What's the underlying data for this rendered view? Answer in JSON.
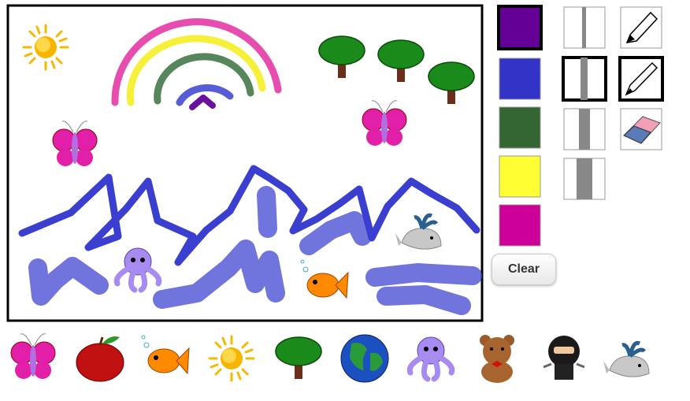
{
  "toolbar": {
    "clear_button": "Clear"
  }
}
